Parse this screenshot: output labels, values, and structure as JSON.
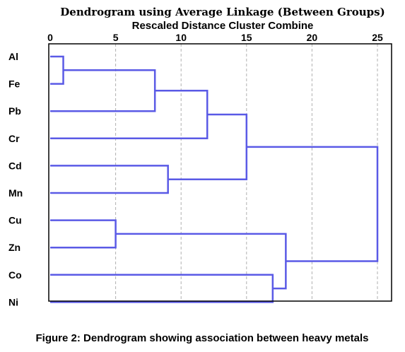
{
  "chart_data": {
    "type": "dendrogram",
    "title": "Dendrogram using Average Linkage (Between Groups)",
    "subtitle": "Rescaled Distance Cluster Combine",
    "xlim": [
      0,
      25
    ],
    "ticks": [
      0,
      5,
      10,
      15,
      20,
      25
    ],
    "grid": true,
    "leaves": [
      "Al",
      "Fe",
      "Pb",
      "Cr",
      "Cd",
      "Mn",
      "Cu",
      "Zn",
      "Co",
      "Ni"
    ],
    "merges": [
      {
        "a": "Al",
        "b": "Fe",
        "distance": 1
      },
      {
        "a": "Cu",
        "b": "Zn",
        "distance": 5
      },
      {
        "a": "Al+Fe",
        "b": "Pb",
        "distance": 8
      },
      {
        "a": "Cd",
        "b": "Mn",
        "distance": 9
      },
      {
        "a": "Al+Fe+Pb",
        "b": "Cr",
        "distance": 12
      },
      {
        "a": "Al+Fe+Pb+Cr",
        "b": "Cd+Mn",
        "distance": 15
      },
      {
        "a": "Co",
        "b": "Ni",
        "distance": 17
      },
      {
        "a": "Cu+Zn",
        "b": "Co+Ni",
        "distance": 18
      },
      {
        "a": "Al+Fe+Pb+Cr+Cd+Mn",
        "b": "Cu+Zn+Co+Ni",
        "distance": 25
      }
    ],
    "line_color": "#5a5ae6"
  },
  "caption": "Figure 2: Dendrogram showing association between heavy metals"
}
